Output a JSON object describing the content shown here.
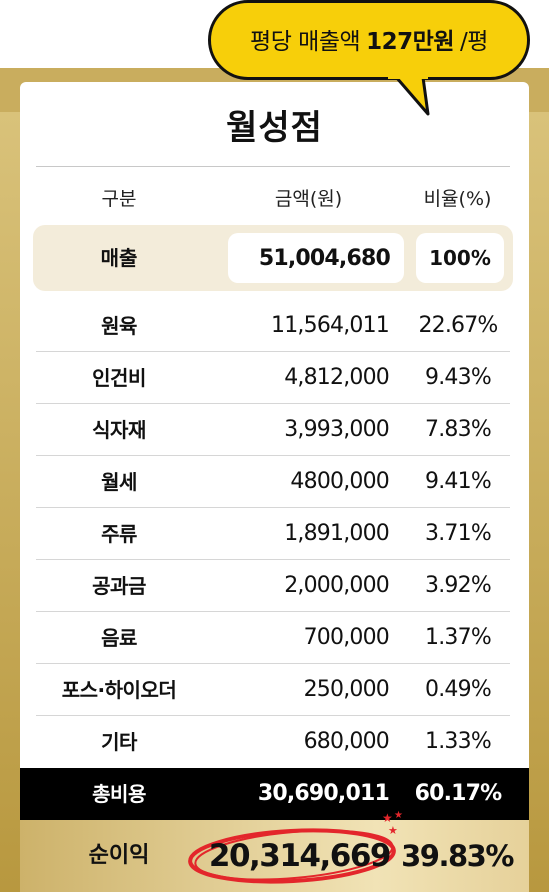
{
  "bubble": {
    "prefix": "평당 매출액",
    "highlight": "127만원",
    "suffix": "/평"
  },
  "store_name": "월성점",
  "headers": {
    "category": "구분",
    "amount": "금액(원)",
    "ratio": "비율(%)"
  },
  "sales": {
    "label": "매출",
    "amount": "51,004,680",
    "ratio": "100%"
  },
  "rows": [
    {
      "label": "원육",
      "amount": "11,564,011",
      "ratio": "22.67%"
    },
    {
      "label": "인건비",
      "amount": "4,812,000",
      "ratio": "9.43%"
    },
    {
      "label": "식자재",
      "amount": "3,993,000",
      "ratio": "7.83%"
    },
    {
      "label": "월세",
      "amount": "4800,000",
      "ratio": "9.41%"
    },
    {
      "label": "주류",
      "amount": "1,891,000",
      "ratio": "3.71%"
    },
    {
      "label": "공과금",
      "amount": "2,000,000",
      "ratio": "3.92%"
    },
    {
      "label": "음료",
      "amount": "700,000",
      "ratio": "1.37%"
    },
    {
      "label": "포스·하이오더",
      "amount": "250,000",
      "ratio": "0.49%"
    },
    {
      "label": "기타",
      "amount": "680,000",
      "ratio": "1.33%"
    }
  ],
  "total": {
    "label": "총비용",
    "amount": "30,690,011",
    "ratio": "60.17%"
  },
  "profit": {
    "label": "순이익",
    "amount": "20,314,669",
    "ratio": "39.83%"
  },
  "colors": {
    "gold": "#c9ad5e",
    "bubble": "#f7cf0a",
    "accent_red": "#e3262b",
    "sales_bg": "#f3ecda"
  }
}
